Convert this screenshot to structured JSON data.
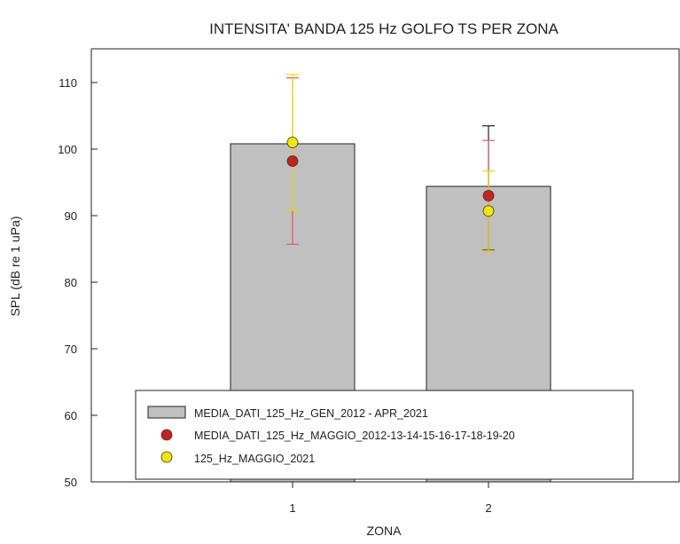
{
  "chart_data": {
    "type": "bar",
    "title": "INTENSITA' BANDA 125 Hz GOLFO TS PER ZONA",
    "xlabel": "ZONA",
    "ylabel": "SPL (dB re 1 uPa)",
    "categories": [
      "1",
      "2"
    ],
    "ylim": [
      50,
      115
    ],
    "yticks": [
      50,
      60,
      70,
      80,
      90,
      100,
      110
    ],
    "grid": false,
    "legend_position": "bottom",
    "series": [
      {
        "name": "MEDIA_DATI_125_Hz_GEN_2012 - APR_2021",
        "kind": "bar",
        "color": "#c0c0c0",
        "values": [
          100.8,
          94.4
        ],
        "error_low": [
          null,
          84.8
        ],
        "error_high": [
          null,
          103.5
        ],
        "error_color": "#222222"
      },
      {
        "name": "MEDIA_DATI_125_Hz_MAGGIO_2012-13-14-15-16-17-18-19-20",
        "kind": "point",
        "color": "#cc1f1f",
        "values": [
          98.2,
          93.0
        ],
        "error_low": [
          85.7,
          84.7
        ],
        "error_high": [
          110.7,
          101.3
        ],
        "error_color": "#e05a5a"
      },
      {
        "name": "125_Hz_MAGGIO_2021",
        "kind": "point",
        "color": "#f5e600",
        "values": [
          101.0,
          90.7
        ],
        "error_low": [
          90.8,
          84.7
        ],
        "error_high": [
          111.2,
          96.7
        ],
        "error_color": "#f0d800"
      }
    ]
  }
}
